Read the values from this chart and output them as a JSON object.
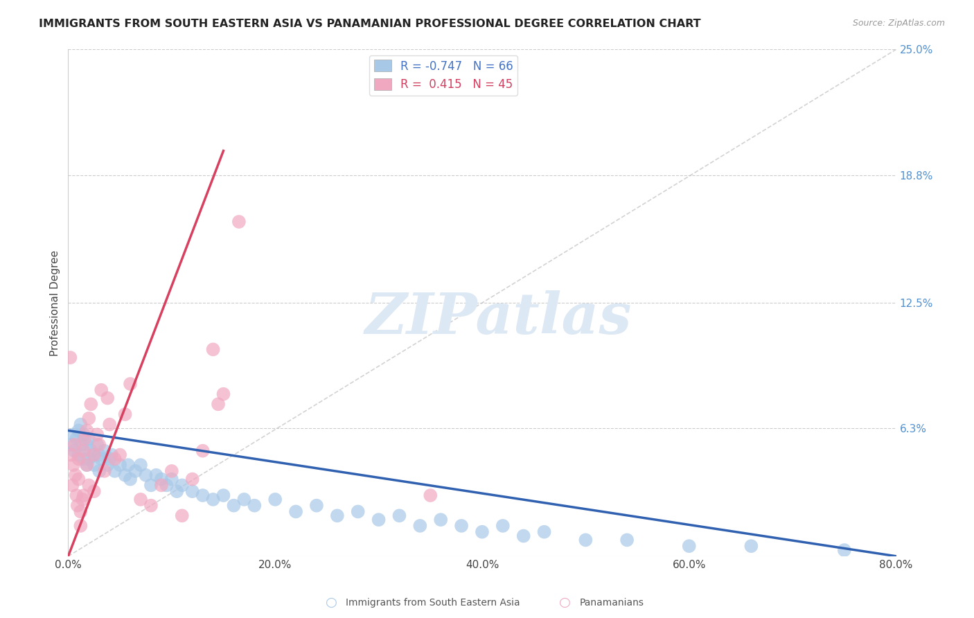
{
  "title": "IMMIGRANTS FROM SOUTH EASTERN ASIA VS PANAMANIAN PROFESSIONAL DEGREE CORRELATION CHART",
  "source": "Source: ZipAtlas.com",
  "ylabel": "Professional Degree",
  "legend_label1": "Immigrants from South Eastern Asia",
  "legend_label2": "Panamanians",
  "R1": -0.747,
  "N1": 66,
  "R2": 0.415,
  "N2": 45,
  "x_min": 0.0,
  "x_max": 80.0,
  "y_min": 0.0,
  "y_max": 25.0,
  "yticks": [
    6.3,
    12.5,
    18.8,
    25.0
  ],
  "xticks": [
    0.0,
    20.0,
    40.0,
    60.0,
    80.0
  ],
  "color_blue": "#a8c8e8",
  "color_pink": "#f0a8c0",
  "color_trend_blue": "#3060b0",
  "color_trend_pink": "#d84060",
  "color_diag": "#c0c0c0",
  "color_axis_right": "#5090d0",
  "watermark_color": "#dde8f5",
  "blue_scatter_x": [
    0.3,
    0.5,
    0.6,
    0.8,
    1.0,
    1.0,
    1.2,
    1.3,
    1.5,
    1.5,
    1.8,
    1.8,
    2.0,
    2.0,
    2.2,
    2.5,
    2.5,
    2.8,
    3.0,
    3.0,
    3.2,
    3.5,
    3.8,
    4.0,
    4.2,
    4.5,
    5.0,
    5.5,
    5.8,
    6.0,
    6.5,
    7.0,
    7.5,
    8.0,
    8.5,
    9.0,
    9.5,
    10.0,
    10.5,
    11.0,
    12.0,
    13.0,
    14.0,
    15.0,
    16.0,
    17.0,
    18.0,
    20.0,
    22.0,
    24.0,
    26.0,
    28.0,
    30.0,
    32.0,
    34.0,
    36.0,
    38.0,
    40.0,
    42.0,
    44.0,
    46.0,
    50.0,
    54.0,
    60.0,
    66.0,
    75.0
  ],
  "blue_scatter_y": [
    5.5,
    6.0,
    5.2,
    5.8,
    6.2,
    5.0,
    6.5,
    5.5,
    4.8,
    6.0,
    5.5,
    4.5,
    5.8,
    4.8,
    5.2,
    5.0,
    4.5,
    5.5,
    5.0,
    4.2,
    4.8,
    5.2,
    4.5,
    4.8,
    5.0,
    4.2,
    4.5,
    4.0,
    4.5,
    3.8,
    4.2,
    4.5,
    4.0,
    3.5,
    4.0,
    3.8,
    3.5,
    3.8,
    3.2,
    3.5,
    3.2,
    3.0,
    2.8,
    3.0,
    2.5,
    2.8,
    2.5,
    2.8,
    2.2,
    2.5,
    2.0,
    2.2,
    1.8,
    2.0,
    1.5,
    1.8,
    1.5,
    1.2,
    1.5,
    1.0,
    1.2,
    0.8,
    0.8,
    0.5,
    0.5,
    0.3
  ],
  "pink_scatter_x": [
    0.2,
    0.3,
    0.4,
    0.5,
    0.6,
    0.7,
    0.8,
    0.9,
    1.0,
    1.0,
    1.2,
    1.2,
    1.4,
    1.5,
    1.5,
    1.6,
    1.8,
    1.8,
    2.0,
    2.0,
    2.2,
    2.5,
    2.5,
    2.8,
    3.0,
    3.2,
    3.5,
    3.8,
    4.0,
    4.5,
    5.0,
    5.5,
    6.0,
    7.0,
    8.0,
    9.0,
    10.0,
    11.0,
    12.0,
    13.0,
    14.0,
    14.5,
    15.0,
    16.5,
    35.0
  ],
  "pink_scatter_y": [
    9.8,
    5.0,
    3.5,
    4.5,
    5.5,
    4.0,
    3.0,
    2.5,
    4.8,
    3.8,
    2.2,
    1.5,
    2.8,
    5.2,
    3.0,
    5.8,
    6.2,
    4.5,
    6.8,
    3.5,
    7.5,
    5.0,
    3.2,
    6.0,
    5.5,
    8.2,
    4.2,
    7.8,
    6.5,
    4.8,
    5.0,
    7.0,
    8.5,
    2.8,
    2.5,
    3.5,
    4.2,
    2.0,
    3.8,
    5.2,
    10.2,
    7.5,
    8.0,
    16.5,
    3.0
  ],
  "blue_trend_x0": 0.0,
  "blue_trend_y0": 6.2,
  "blue_trend_x1": 80.0,
  "blue_trend_y1": 0.0,
  "pink_trend_x0": 0.0,
  "pink_trend_y0": 0.0,
  "pink_trend_x1": 15.0,
  "pink_trend_y1": 20.0
}
